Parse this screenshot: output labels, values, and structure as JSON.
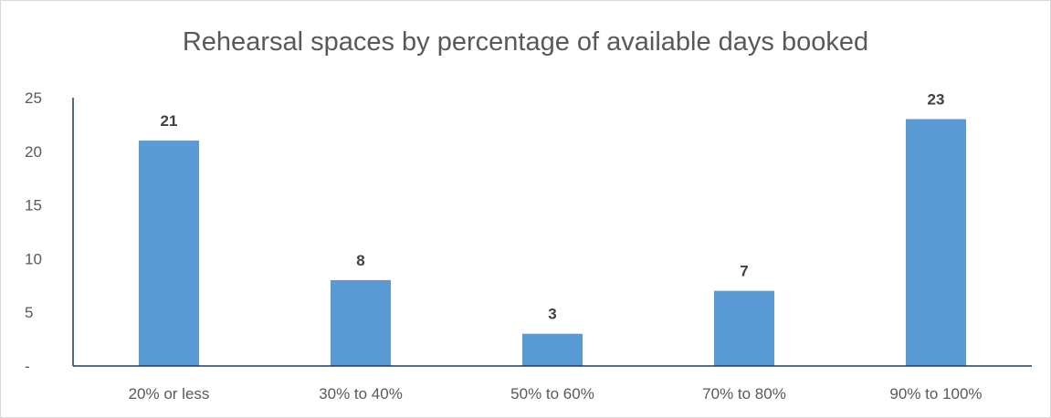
{
  "chart_data": {
    "type": "bar",
    "title": "Rehearsal spaces by percentage of available days booked",
    "categories": [
      "20% or less",
      "30% to 40%",
      "50% to 60%",
      "70% to 80%",
      "90% to 100%"
    ],
    "values": [
      21,
      8,
      3,
      7,
      23
    ],
    "y_ticks": [
      {
        "value": 0,
        "label": "-"
      },
      {
        "value": 5,
        "label": "5"
      },
      {
        "value": 10,
        "label": "10"
      },
      {
        "value": 15,
        "label": "15"
      },
      {
        "value": 20,
        "label": "20"
      },
      {
        "value": 25,
        "label": "25"
      }
    ],
    "ylim": [
      0,
      25
    ],
    "grid": false,
    "legend": "none",
    "bar_color": "#5b9bd5",
    "axis_color": "#1f3864"
  }
}
